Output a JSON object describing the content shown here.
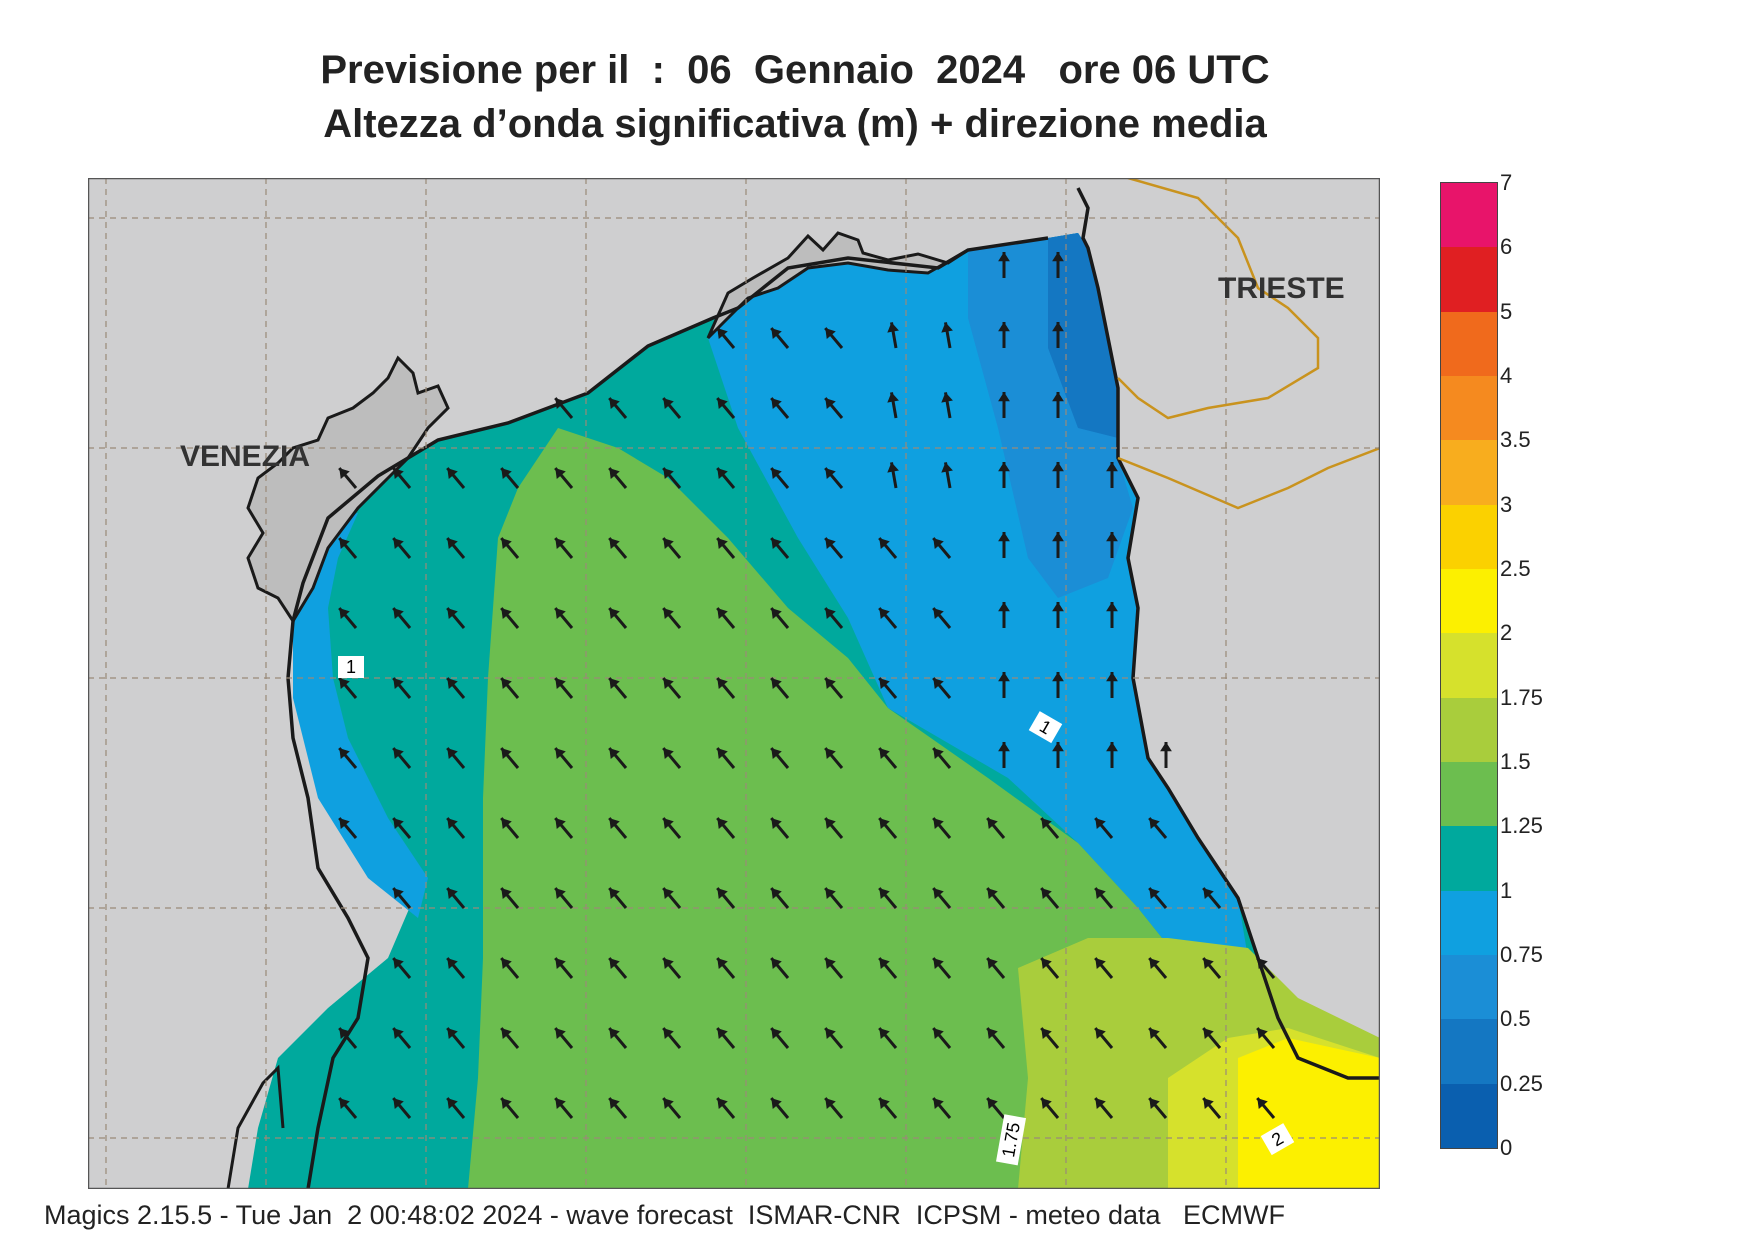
{
  "title": {
    "line1": "Previsione per il  :  06  Gennaio  2024   ore 06 UTC",
    "line2": "Altezza d’onda significativa (m) + direzione media"
  },
  "cities": {
    "venezia": "VENEZIA",
    "trieste": "TRIESTE"
  },
  "contour_labels": [
    "1",
    "1",
    "1.75",
    "2"
  ],
  "legend": {
    "labels": [
      "7",
      "6",
      "5",
      "4",
      "3.5",
      "3",
      "2.5",
      "2",
      "1.75",
      "1.5",
      "1.25",
      "1",
      "0.75",
      "0.5",
      "0.25",
      "0"
    ],
    "colors": [
      "#e8146a",
      "#e01f22",
      "#f06a1c",
      "#f58a1f",
      "#f8ad1e",
      "#fbd100",
      "#fcf000",
      "#d6e12c",
      "#a9cd3c",
      "#6cbe4f",
      "#00a99d",
      "#0fa0e0",
      "#1b8ed6",
      "#1477c2",
      "#0a5faf"
    ]
  },
  "map_colors": {
    "land": "#cfcfd0",
    "coast": "#1a1a1a",
    "border": "#c9931e",
    "grid": "#9a8a78"
  },
  "footer": "Magics 2.15.5 - Tue Jan  2 00:48:02 2024 - wave forecast  ISMAR-CNR  ICPSM - meteo data   ECMWF"
}
